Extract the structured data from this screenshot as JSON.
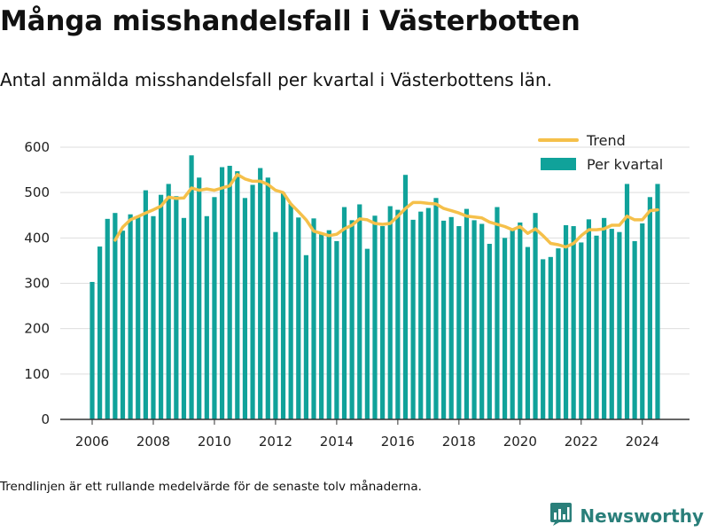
{
  "title": "Många misshandelsfall i Västerbotten",
  "subtitle": "Antal anmälda misshandelsfall per kvartal i Västerbottens län.",
  "footnote": "Trendlinjen är ett rullande medelvärde för de senaste tolv månaderna.",
  "brand": "Newsworthy",
  "colors": {
    "bars": "#10a29a",
    "trend": "#f5c04a",
    "grid": "#dedede",
    "axis": "#333333",
    "brand": "#2a7f7a"
  },
  "chart_data": {
    "type": "bar",
    "title": "",
    "xlabel": "",
    "ylabel": "",
    "ylim": [
      0,
      650
    ],
    "yticks": [
      0,
      100,
      200,
      300,
      400,
      500,
      600
    ],
    "xlim": [
      2005,
      2025.5
    ],
    "xticks": [
      2006,
      2008,
      2010,
      2012,
      2014,
      2016,
      2018,
      2020,
      2022,
      2024
    ],
    "grid": true,
    "legend_position": "top-right",
    "series": [
      {
        "name": "Per kvartal",
        "type": "bar",
        "x": [
          2006.0,
          2006.25,
          2006.5,
          2006.75,
          2007.0,
          2007.25,
          2007.5,
          2007.75,
          2008.0,
          2008.25,
          2008.5,
          2008.75,
          2009.0,
          2009.25,
          2009.5,
          2009.75,
          2010.0,
          2010.25,
          2010.5,
          2010.75,
          2011.0,
          2011.25,
          2011.5,
          2011.75,
          2012.0,
          2012.25,
          2012.5,
          2012.75,
          2013.0,
          2013.25,
          2013.5,
          2013.75,
          2014.0,
          2014.25,
          2014.5,
          2014.75,
          2015.0,
          2015.25,
          2015.5,
          2015.75,
          2016.0,
          2016.25,
          2016.5,
          2016.75,
          2017.0,
          2017.25,
          2017.5,
          2017.75,
          2018.0,
          2018.25,
          2018.5,
          2018.75,
          2019.0,
          2019.25,
          2019.5,
          2019.75,
          2020.0,
          2020.25,
          2020.5,
          2020.75,
          2021.0,
          2021.25,
          2021.5,
          2021.75,
          2022.0,
          2022.25,
          2022.5,
          2022.75,
          2023.0,
          2023.25,
          2023.5,
          2023.75,
          2024.0,
          2024.25,
          2024.5
        ],
        "values": [
          303,
          381,
          442,
          455,
          416,
          452,
          446,
          505,
          448,
          495,
          519,
          492,
          444,
          582,
          533,
          448,
          490,
          556,
          559,
          547,
          488,
          517,
          554,
          533,
          413,
          500,
          475,
          445,
          362,
          443,
          408,
          417,
          393,
          468,
          439,
          474,
          376,
          449,
          426,
          470,
          462,
          539,
          440,
          458,
          466,
          488,
          438,
          446,
          426,
          464,
          439,
          431,
          387,
          468,
          400,
          417,
          434,
          380,
          455,
          353,
          358,
          377,
          428,
          426,
          390,
          441,
          405,
          444,
          420,
          413,
          519,
          393,
          432,
          490,
          519
        ]
      },
      {
        "name": "Trend",
        "type": "line",
        "x": [
          2006.75,
          2007.0,
          2007.25,
          2007.5,
          2007.75,
          2008.0,
          2008.25,
          2008.5,
          2008.75,
          2009.0,
          2009.25,
          2009.5,
          2009.75,
          2010.0,
          2010.25,
          2010.5,
          2010.75,
          2011.0,
          2011.25,
          2011.5,
          2011.75,
          2012.0,
          2012.25,
          2012.5,
          2012.75,
          2013.0,
          2013.25,
          2013.5,
          2013.75,
          2014.0,
          2014.25,
          2014.5,
          2014.75,
          2015.0,
          2015.25,
          2015.5,
          2015.75,
          2016.0,
          2016.25,
          2016.5,
          2016.75,
          2017.0,
          2017.25,
          2017.5,
          2017.75,
          2018.0,
          2018.25,
          2018.5,
          2018.75,
          2019.0,
          2019.25,
          2019.5,
          2019.75,
          2020.0,
          2020.25,
          2020.5,
          2020.75,
          2021.0,
          2021.25,
          2021.5,
          2021.75,
          2022.0,
          2022.25,
          2022.5,
          2022.75,
          2023.0,
          2023.25,
          2023.5,
          2023.75,
          2024.0,
          2024.25,
          2024.5
        ],
        "values": [
          395,
          424,
          440,
          447,
          455,
          462,
          470,
          490,
          487,
          488,
          510,
          505,
          508,
          505,
          510,
          515,
          540,
          530,
          525,
          525,
          518,
          505,
          500,
          475,
          458,
          440,
          415,
          410,
          405,
          408,
          420,
          428,
          442,
          440,
          432,
          430,
          432,
          448,
          465,
          478,
          478,
          476,
          475,
          465,
          460,
          455,
          448,
          446,
          444,
          435,
          430,
          425,
          418,
          425,
          410,
          420,
          405,
          388,
          385,
          380,
          388,
          405,
          418,
          418,
          420,
          428,
          428,
          448,
          440,
          440,
          460,
          462
        ]
      }
    ]
  }
}
